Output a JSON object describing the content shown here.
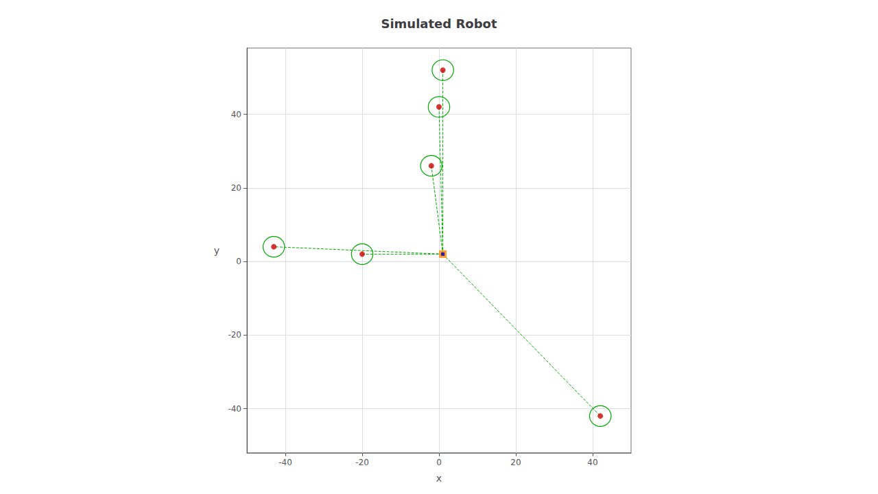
{
  "chart_data": {
    "type": "scatter",
    "title": "Simulated Robot",
    "xlabel": "x",
    "ylabel": "y",
    "xlim": [
      -50,
      50
    ],
    "ylim": [
      -52,
      58
    ],
    "xticks": [
      -40,
      -20,
      0,
      20,
      40
    ],
    "yticks": [
      -40,
      -20,
      0,
      20,
      40
    ],
    "grid": true,
    "robot": {
      "x": 1,
      "y": 2,
      "color": "#ff8800",
      "inner_color": "#0000cc",
      "marker": "square"
    },
    "landmarks": {
      "x": [
        -43,
        -20,
        -2,
        0,
        1,
        42
      ],
      "y": [
        4,
        2,
        26,
        42,
        52,
        -42
      ],
      "color": "#cc0000",
      "marker": "circle",
      "ring_color": "#00aa00",
      "radius": 2.8
    },
    "lines": {
      "color": "#00aa00",
      "line_style": "dashed"
    }
  }
}
